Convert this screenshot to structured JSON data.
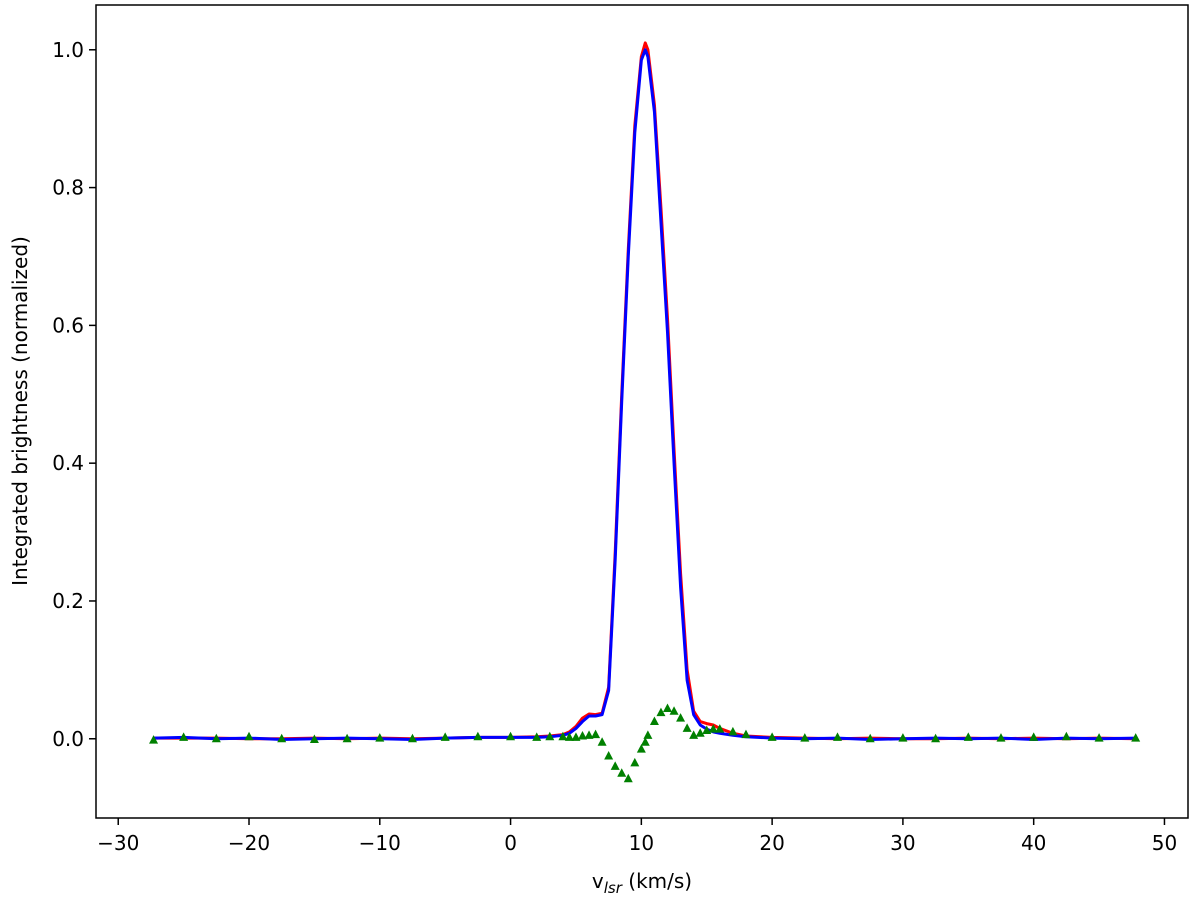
{
  "chart_data": {
    "type": "line",
    "x_label_parts": [
      "v",
      "lsr",
      " (km/s)"
    ],
    "y_label": "Integrated brightness (normalized)",
    "x": [
      -27.3,
      -25,
      -22.5,
      -20,
      -17.5,
      -15,
      -12.5,
      -10,
      -7.5,
      -5,
      -2.5,
      0,
      2,
      3,
      4,
      4.5,
      5,
      5.5,
      6,
      6.5,
      7,
      7.5,
      8,
      8.5,
      9,
      9.5,
      10,
      10.3,
      10.5,
      11,
      11.5,
      12,
      12.5,
      13,
      13.5,
      14,
      14.5,
      15,
      15.5,
      16,
      17,
      18,
      20,
      22.5,
      25,
      27.5,
      30,
      32.5,
      35,
      37.5,
      40,
      42.5,
      45,
      47.8
    ],
    "series": [
      {
        "color": "#ff0000",
        "style": "line",
        "values": [
          0.001,
          0.001,
          0.001,
          0,
          0,
          0.001,
          0,
          0.001,
          0,
          0.001,
          0.002,
          0.002,
          0.003,
          0.004,
          0.006,
          0.01,
          0.018,
          0.03,
          0.036,
          0.035,
          0.037,
          0.075,
          0.27,
          0.5,
          0.71,
          0.89,
          0.99,
          1.01,
          1.0,
          0.92,
          0.77,
          0.61,
          0.42,
          0.24,
          0.1,
          0.04,
          0.025,
          0.022,
          0.02,
          0.015,
          0.008,
          0.004,
          0.002,
          0.001,
          0,
          0.001,
          0,
          0,
          0.001,
          0,
          0.001,
          0,
          0.001,
          0
        ]
      },
      {
        "color": "#0000ff",
        "style": "line",
        "values": [
          0.001,
          0.002,
          0,
          0.001,
          -0.001,
          0,
          0.001,
          0,
          -0.001,
          0.001,
          0.002,
          0.002,
          0.002,
          0.003,
          0.005,
          0.008,
          0.015,
          0.025,
          0.033,
          0.033,
          0.035,
          0.07,
          0.26,
          0.49,
          0.7,
          0.88,
          0.985,
          1.0,
          0.99,
          0.91,
          0.75,
          0.59,
          0.4,
          0.22,
          0.085,
          0.035,
          0.02,
          0.014,
          0.01,
          0.008,
          0.005,
          0.003,
          0.001,
          0,
          0.001,
          -0.001,
          0,
          0.001,
          0,
          0.001,
          -0.001,
          0.001,
          0,
          0.001
        ]
      },
      {
        "color": "#008000",
        "style": "triangles",
        "values": [
          -0.002,
          0.002,
          0,
          0.003,
          0,
          -0.001,
          0,
          0.001,
          0,
          0.002,
          0.003,
          0.003,
          0.002,
          0.003,
          0.003,
          0.002,
          0.002,
          0.004,
          0.005,
          0.006,
          -0.005,
          -0.025,
          -0.04,
          -0.05,
          -0.058,
          -0.035,
          -0.015,
          -0.005,
          0.005,
          0.025,
          0.038,
          0.044,
          0.04,
          0.03,
          0.015,
          0.005,
          0.008,
          0.012,
          0.014,
          0.014,
          0.01,
          0.006,
          0.002,
          0.001,
          0.002,
          0,
          0.001,
          0,
          0.002,
          0.001,
          0.002,
          0.003,
          0.001,
          0.001
        ]
      }
    ],
    "xlim": [
      -31.7,
      51.8
    ],
    "ylim": [
      -0.115,
      1.065
    ],
    "xticks": [
      {
        "value": -30,
        "label": "−30"
      },
      {
        "value": -20,
        "label": "−20"
      },
      {
        "value": -10,
        "label": "−10"
      },
      0,
      10,
      20,
      30,
      40,
      50
    ],
    "yticks": [
      {
        "value": 0,
        "label": "0.0"
      },
      {
        "value": 0.2,
        "label": "0.2"
      },
      {
        "value": 0.4,
        "label": "0.4"
      },
      {
        "value": 0.6,
        "label": "0.6"
      },
      {
        "value": 0.8,
        "label": "0.8"
      },
      {
        "value": 1,
        "label": "1.0"
      }
    ],
    "grid": false
  }
}
